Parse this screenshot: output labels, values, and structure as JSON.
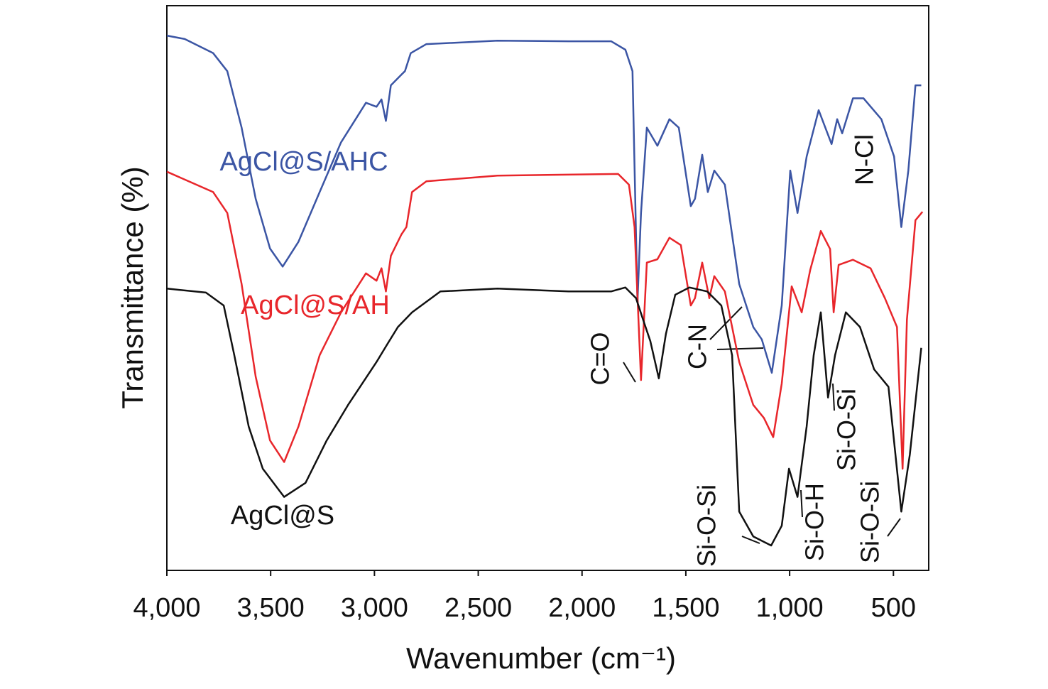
{
  "chart_data": {
    "type": "line",
    "xlabel": "Wavenumber (cm⁻¹)",
    "ylabel": "Transmittance (%)",
    "xlim": [
      4000,
      330
    ],
    "ylim": [
      0,
      100
    ],
    "xticks": [
      {
        "value": 4000,
        "label": "4,000"
      },
      {
        "value": 3500,
        "label": "3,500"
      },
      {
        "value": 3000,
        "label": "3,000"
      },
      {
        "value": 2500,
        "label": "2,500"
      },
      {
        "value": 2000,
        "label": "2,000"
      },
      {
        "value": 1500,
        "label": "1,500"
      },
      {
        "value": 1000,
        "label": "1,000"
      },
      500
    ],
    "annotations": [
      "C=O",
      "C-N",
      "Si-O-Si",
      "Si-O-H",
      "Si-O-Si",
      "Si-O-Si",
      "N-Cl"
    ],
    "series": [
      {
        "name": "AgCl@S/AHC",
        "color": "#3b55a4",
        "x": [
          4000,
          3914,
          3777,
          3709,
          3640,
          3572,
          3503,
          3442,
          3366,
          3264,
          3161,
          3041,
          2990,
          2966,
          2945,
          2921,
          2870,
          2853,
          2825,
          2750,
          2408,
          2065,
          1860,
          1791,
          1757,
          1733,
          1716,
          1688,
          1637,
          1579,
          1534,
          1476,
          1456,
          1421,
          1394,
          1363,
          1312,
          1243,
          1175,
          1134,
          1086,
          1038,
          997,
          962,
          918,
          860,
          798,
          771,
          747,
          695,
          644,
          558,
          497,
          462,
          428,
          394,
          366
        ],
        "values": [
          94.7,
          94.1,
          91.6,
          88.4,
          78.4,
          65.8,
          57.0,
          53.8,
          58.2,
          67.0,
          75.8,
          82.8,
          82.1,
          83.4,
          79.6,
          85.9,
          87.8,
          88.4,
          91.6,
          93.2,
          93.8,
          93.7,
          93.7,
          92.2,
          88.4,
          47.5,
          63.3,
          78.4,
          75.2,
          79.9,
          78.4,
          64.5,
          65.8,
          73.6,
          67.0,
          70.8,
          68.3,
          50.7,
          43.1,
          40.9,
          35.0,
          46.9,
          70.8,
          63.3,
          73.3,
          81.5,
          75.5,
          79.9,
          77.4,
          83.6,
          83.6,
          79.9,
          73.3,
          60.8,
          70.8,
          85.9,
          85.9
        ]
      },
      {
        "name": "AgCl@S/AH",
        "color": "#e8262b",
        "x": [
          4000,
          3777,
          3709,
          3640,
          3572,
          3503,
          3435,
          3366,
          3264,
          3161,
          3041,
          2990,
          2966,
          2945,
          2921,
          2870,
          2846,
          2819,
          2750,
          2408,
          1826,
          1774,
          1747,
          1716,
          1688,
          1637,
          1579,
          1524,
          1476,
          1456,
          1421,
          1387,
          1363,
          1312,
          1243,
          1175,
          1124,
          1079,
          1038,
          990,
          942,
          901,
          850,
          805,
          788,
          764,
          695,
          610,
          541,
          483,
          456,
          435,
          394,
          360
        ],
        "values": [
          70.6,
          67.0,
          63.3,
          50.7,
          34.3,
          23.0,
          19.2,
          25.5,
          38.1,
          45.7,
          52.6,
          51.3,
          53.5,
          49.4,
          55.7,
          59.5,
          60.8,
          67.0,
          68.9,
          69.9,
          70.2,
          68.3,
          60.8,
          33.7,
          54.5,
          55.1,
          58.9,
          57.6,
          46.9,
          48.2,
          54.5,
          48.2,
          52.1,
          49.4,
          36.9,
          29.3,
          27.0,
          23.6,
          33.1,
          50.3,
          45.7,
          53.2,
          60.1,
          56.9,
          45.7,
          54.1,
          55.0,
          53.5,
          48.2,
          43.1,
          18.0,
          44.4,
          62.0,
          63.5
        ]
      },
      {
        "name": "AgCl@S",
        "color": "#111111",
        "x": [
          4000,
          3812,
          3726,
          3675,
          3606,
          3538,
          3435,
          3332,
          3230,
          3127,
          2990,
          2939,
          2887,
          2819,
          2682,
          2408,
          2065,
          1860,
          1791,
          1740,
          1706,
          1671,
          1630,
          1596,
          1551,
          1483,
          1397,
          1329,
          1277,
          1243,
          1175,
          1089,
          1038,
          1003,
          962,
          918,
          884,
          850,
          815,
          781,
          729,
          661,
          593,
          524,
          462,
          421,
          366
        ],
        "values": [
          49.9,
          49.2,
          46.9,
          38.1,
          25.5,
          18.0,
          13.0,
          15.5,
          23.0,
          29.3,
          36.9,
          40.0,
          43.1,
          45.7,
          49.4,
          49.9,
          49.4,
          49.4,
          50.1,
          48.2,
          44.4,
          40.6,
          34.0,
          41.9,
          48.8,
          50.1,
          49.4,
          46.9,
          38.1,
          10.4,
          6.0,
          4.4,
          7.9,
          18.0,
          13.0,
          25.5,
          38.1,
          45.7,
          30.6,
          38.1,
          45.7,
          43.1,
          35.6,
          32.5,
          10.4,
          20.5,
          39.4
        ]
      }
    ]
  }
}
